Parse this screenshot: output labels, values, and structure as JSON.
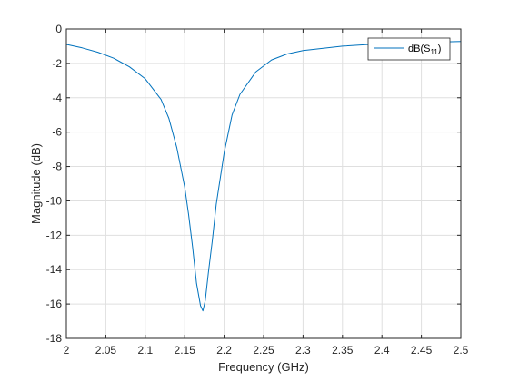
{
  "chart_data": {
    "type": "line",
    "title": "",
    "xlabel": "Frequency (GHz)",
    "ylabel": "Magnitude (dB)",
    "xlim": [
      2,
      2.5
    ],
    "ylim": [
      -18,
      0
    ],
    "xticks": [
      2,
      2.05,
      2.1,
      2.15,
      2.2,
      2.25,
      2.3,
      2.35,
      2.4,
      2.45,
      2.5
    ],
    "xtick_labels": [
      "2",
      "2.05",
      "2.1",
      "2.15",
      "2.2",
      "2.25",
      "2.3",
      "2.35",
      "2.4",
      "2.45",
      "2.5"
    ],
    "yticks": [
      0,
      -2,
      -4,
      -6,
      -8,
      -10,
      -12,
      -14,
      -16,
      -18
    ],
    "ytick_labels": [
      "0",
      "-2",
      "-4",
      "-6",
      "-8",
      "-10",
      "-12",
      "-14",
      "-16",
      "-18"
    ],
    "grid": true,
    "legend_position": "top-right",
    "series": [
      {
        "legend_main": "dB(S",
        "legend_sub": "11",
        "legend_end": ")",
        "color": "#0072BD",
        "x": [
          2.0,
          2.02,
          2.04,
          2.06,
          2.08,
          2.1,
          2.12,
          2.13,
          2.14,
          2.15,
          2.155,
          2.16,
          2.165,
          2.17,
          2.173,
          2.176,
          2.18,
          2.185,
          2.19,
          2.2,
          2.21,
          2.22,
          2.24,
          2.26,
          2.28,
          2.3,
          2.35,
          2.4,
          2.45,
          2.5
        ],
        "y": [
          -0.9,
          -1.1,
          -1.35,
          -1.7,
          -2.2,
          -2.9,
          -4.1,
          -5.2,
          -6.9,
          -9.2,
          -10.8,
          -12.7,
          -14.8,
          -16.1,
          -16.4,
          -15.8,
          -14.2,
          -12.3,
          -10.2,
          -7.2,
          -5.0,
          -3.8,
          -2.5,
          -1.8,
          -1.45,
          -1.25,
          -1.0,
          -0.85,
          -0.78,
          -0.73
        ]
      }
    ]
  }
}
